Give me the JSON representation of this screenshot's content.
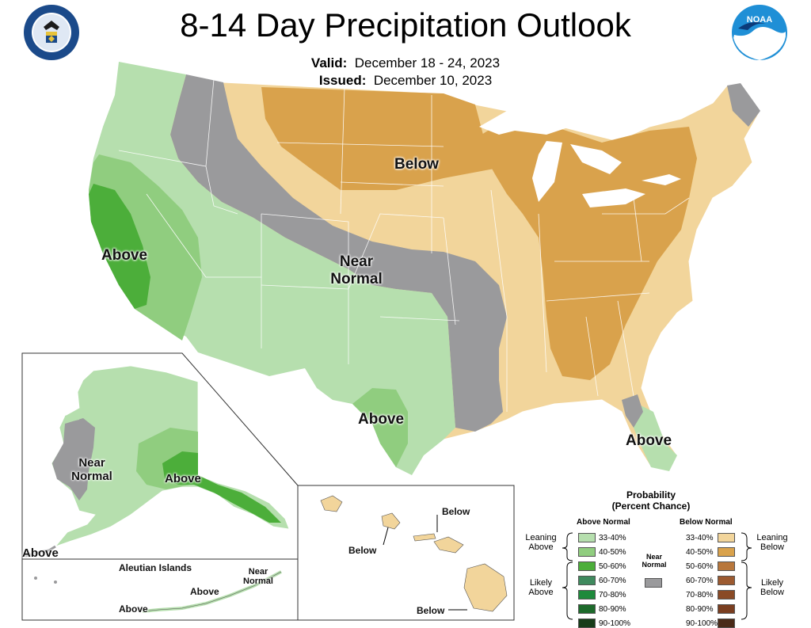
{
  "title": "8-14 Day Precipitation Outlook",
  "valid_label": "Valid:",
  "valid_value": "December 18 - 24, 2023",
  "issued_label": "Issued:",
  "issued_value": "December 10, 2023",
  "logos": {
    "left": "department-of-commerce-seal",
    "right": "noaa-logo",
    "noaa_text": "NOAA"
  },
  "colors": {
    "above_33_40": "#b6dfae",
    "above_40_50": "#90cd7f",
    "above_50_60": "#4cae3a",
    "above_60_70": "#3f8a5e",
    "above_70_80": "#1e8a3c",
    "above_80_90": "#1d6a2b",
    "above_90_100": "#173d1a",
    "near_normal": "#9a9a9c",
    "below_33_40": "#f2d59b",
    "below_40_50": "#d9a24c",
    "below_50_60": "#b8773c",
    "below_60_70": "#9c5a30",
    "below_70_80": "#8a4a26",
    "below_80_90": "#7a3e20",
    "below_90_100": "#4a2a18",
    "lakes": "#ffffff",
    "borders": "#ffffff"
  },
  "map_labels": {
    "below_north": "Below",
    "near_normal": "Near\nNormal",
    "above_west": "Above",
    "above_texas": "Above",
    "above_florida": "Above",
    "alaska_near_normal": "Near\nNormal",
    "alaska_above": "Above",
    "alaska_above_sw": "Above",
    "aleutian_title": "Aleutian Islands",
    "aleutian_near_normal": "Near\nNormal",
    "aleutian_above_1": "Above",
    "aleutian_above_2": "Above",
    "hawaii_below_1": "Below",
    "hawaii_below_2": "Below",
    "hawaii_below_3": "Below"
  },
  "legend": {
    "title": "Probability\n(Percent Chance)",
    "above_header": "Above Normal",
    "below_header": "Below Normal",
    "near_label": "Near\nNormal",
    "leaning_above": "Leaning\nAbove",
    "likely_above": "Likely\nAbove",
    "leaning_below": "Leaning\nBelow",
    "likely_below": "Likely\nBelow",
    "above_bins": [
      "33-40%",
      "40-50%",
      "50-60%",
      "60-70%",
      "70-80%",
      "80-90%",
      "90-100%"
    ],
    "below_bins": [
      "33-40%",
      "40-50%",
      "50-60%",
      "60-70%",
      "70-80%",
      "80-90%",
      "90-100%"
    ]
  }
}
